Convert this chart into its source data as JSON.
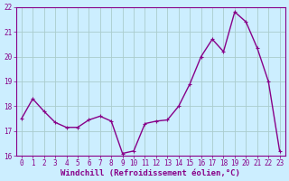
{
  "x": [
    0,
    1,
    2,
    3,
    4,
    5,
    6,
    7,
    8,
    9,
    10,
    11,
    12,
    13,
    14,
    15,
    16,
    17,
    18,
    19,
    20,
    21,
    22,
    23
  ],
  "y": [
    17.5,
    18.3,
    17.8,
    17.35,
    17.15,
    17.15,
    17.45,
    17.6,
    17.4,
    16.1,
    16.2,
    17.3,
    17.4,
    17.45,
    18.0,
    18.9,
    20.0,
    20.7,
    20.2,
    21.8,
    21.4,
    20.35,
    19.0,
    16.2
  ],
  "line_color": "#880088",
  "marker_size": 2.5,
  "bg_color": "#cceeff",
  "grid_color": "#aacccc",
  "xlabel": "Windchill (Refroidissement éolien,°C)",
  "tick_color": "#880088",
  "ylim": [
    16,
    22
  ],
  "yticks": [
    16,
    17,
    18,
    19,
    20,
    21,
    22
  ],
  "xticks": [
    0,
    1,
    2,
    3,
    4,
    5,
    6,
    7,
    8,
    9,
    10,
    11,
    12,
    13,
    14,
    15,
    16,
    17,
    18,
    19,
    20,
    21,
    22,
    23
  ],
  "tick_fontsize": 5.5,
  "xlabel_fontsize": 6.5,
  "linewidth": 1.0
}
